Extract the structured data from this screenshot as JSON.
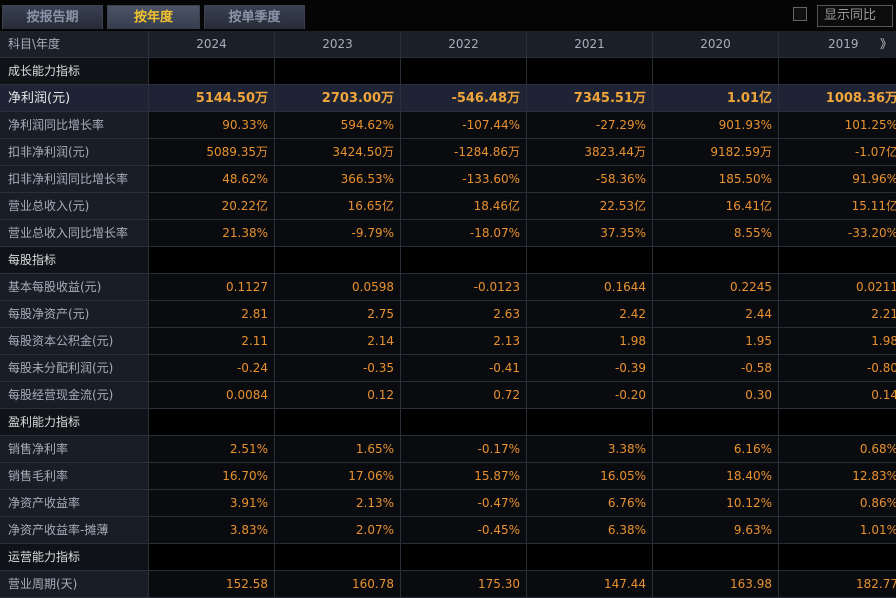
{
  "tabs": [
    "按报告期",
    "按年度",
    "按单季度"
  ],
  "active_tab": 1,
  "yoy_label": "显示同比",
  "header": {
    "label": "科目\\年度",
    "years": [
      "2024",
      "2023",
      "2022",
      "2021",
      "2020",
      "2019"
    ],
    "more_glyph": "》"
  },
  "rows": [
    {
      "type": "section",
      "label": "成长能力指标"
    },
    {
      "type": "highlight",
      "label": "净利润(元)",
      "values": [
        "5144.50万",
        "2703.00万",
        "-546.48万",
        "7345.51万",
        "1.01亿",
        "1008.36万"
      ]
    },
    {
      "type": "metric",
      "label": "净利润同比增长率",
      "values": [
        "90.33%",
        "594.62%",
        "-107.44%",
        "-27.29%",
        "901.93%",
        "101.25%"
      ]
    },
    {
      "type": "metric",
      "label": "扣非净利润(元)",
      "values": [
        "5089.35万",
        "3424.50万",
        "-1284.86万",
        "3823.44万",
        "9182.59万",
        "-1.07亿"
      ]
    },
    {
      "type": "metric",
      "label": "扣非净利润同比增长率",
      "values": [
        "48.62%",
        "366.53%",
        "-133.60%",
        "-58.36%",
        "185.50%",
        "91.96%"
      ]
    },
    {
      "type": "metric",
      "label": "营业总收入(元)",
      "values": [
        "20.22亿",
        "16.65亿",
        "18.46亿",
        "22.53亿",
        "16.41亿",
        "15.11亿"
      ]
    },
    {
      "type": "metric",
      "label": "营业总收入同比增长率",
      "values": [
        "21.38%",
        "-9.79%",
        "-18.07%",
        "37.35%",
        "8.55%",
        "-33.20%"
      ]
    },
    {
      "type": "section",
      "label": "每股指标"
    },
    {
      "type": "metric",
      "label": "基本每股收益(元)",
      "values": [
        "0.1127",
        "0.0598",
        "-0.0123",
        "0.1644",
        "0.2245",
        "0.0211"
      ]
    },
    {
      "type": "metric",
      "label": "每股净资产(元)",
      "values": [
        "2.81",
        "2.75",
        "2.63",
        "2.42",
        "2.44",
        "2.21"
      ]
    },
    {
      "type": "metric",
      "label": "每股资本公积金(元)",
      "values": [
        "2.11",
        "2.14",
        "2.13",
        "1.98",
        "1.95",
        "1.98"
      ]
    },
    {
      "type": "metric",
      "label": "每股未分配利润(元)",
      "values": [
        "-0.24",
        "-0.35",
        "-0.41",
        "-0.39",
        "-0.58",
        "-0.80"
      ]
    },
    {
      "type": "metric",
      "label": "每股经营现金流(元)",
      "values": [
        "0.0084",
        "0.12",
        "0.72",
        "-0.20",
        "0.30",
        "0.14"
      ]
    },
    {
      "type": "section",
      "label": "盈利能力指标"
    },
    {
      "type": "metric",
      "label": "销售净利率",
      "values": [
        "2.51%",
        "1.65%",
        "-0.17%",
        "3.38%",
        "6.16%",
        "0.68%"
      ]
    },
    {
      "type": "metric",
      "label": "销售毛利率",
      "values": [
        "16.70%",
        "17.06%",
        "15.87%",
        "16.05%",
        "18.40%",
        "12.83%"
      ]
    },
    {
      "type": "metric",
      "label": "净资产收益率",
      "values": [
        "3.91%",
        "2.13%",
        "-0.47%",
        "6.76%",
        "10.12%",
        "0.86%"
      ]
    },
    {
      "type": "metric",
      "label": "净资产收益率-摊薄",
      "values": [
        "3.83%",
        "2.07%",
        "-0.45%",
        "6.38%",
        "9.63%",
        "1.01%"
      ]
    },
    {
      "type": "section",
      "label": "运营能力指标"
    },
    {
      "type": "metric",
      "label": "营业周期(天)",
      "values": [
        "152.58",
        "160.78",
        "175.30",
        "147.44",
        "163.98",
        "182.77"
      ]
    }
  ]
}
